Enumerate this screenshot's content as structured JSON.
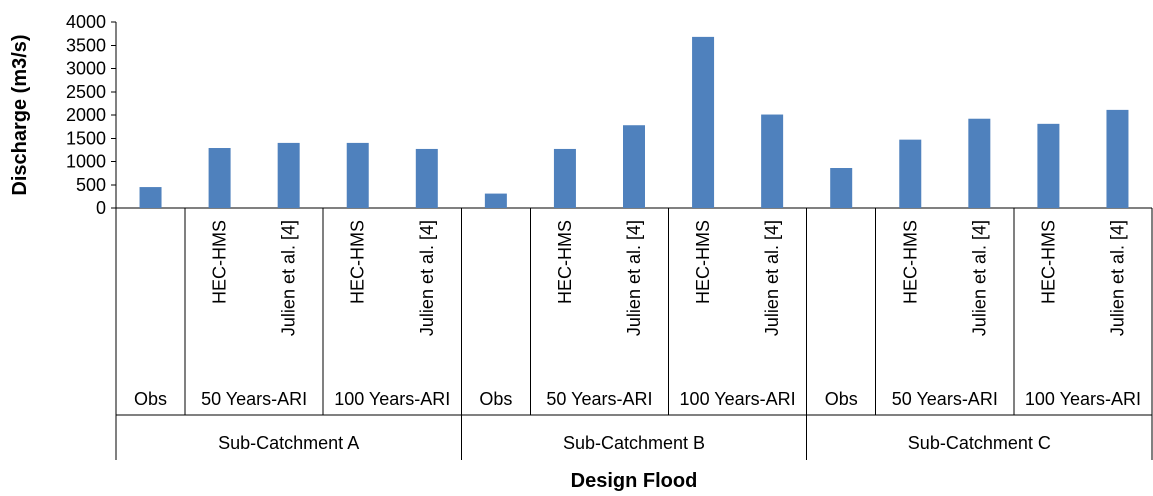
{
  "chart_data": {
    "type": "bar",
    "xlabel": "Design Flood",
    "ylabel": "Discharge (m3/s)",
    "ylim": [
      0,
      4000
    ],
    "yticks": [
      "0",
      "500",
      "1000",
      "1500",
      "2000",
      "2500",
      "3000",
      "3500",
      "4000"
    ],
    "grid": false,
    "legend": "none",
    "bar_color": "#4f81bd",
    "groups": [
      {
        "label": "Sub-Catchment A",
        "subgroups": [
          {
            "label": "Obs",
            "bars": [
              {
                "label": "",
                "value": 450
              }
            ]
          },
          {
            "label": "50 Years-ARI",
            "bars": [
              {
                "label": "HEC-HMS",
                "value": 1290
              },
              {
                "label": "Julien et al. [4]",
                "value": 1400
              }
            ]
          },
          {
            "label": "100 Years-ARI",
            "bars": [
              {
                "label": "HEC-HMS",
                "value": 1400
              },
              {
                "label": "Julien et al. [4]",
                "value": 1270
              }
            ]
          }
        ]
      },
      {
        "label": "Sub-Catchment B",
        "subgroups": [
          {
            "label": "Obs",
            "bars": [
              {
                "label": "",
                "value": 310
              }
            ]
          },
          {
            "label": "50 Years-ARI",
            "bars": [
              {
                "label": "HEC-HMS",
                "value": 1270
              },
              {
                "label": "Julien et al. [4]",
                "value": 1780
              }
            ]
          },
          {
            "label": "100 Years-ARI",
            "bars": [
              {
                "label": "HEC-HMS",
                "value": 3680
              },
              {
                "label": "Julien et al. [4]",
                "value": 2010
              }
            ]
          }
        ]
      },
      {
        "label": "Sub-Catchment C",
        "subgroups": [
          {
            "label": "Obs",
            "bars": [
              {
                "label": "",
                "value": 860
              }
            ]
          },
          {
            "label": "50 Years-ARI",
            "bars": [
              {
                "label": "HEC-HMS",
                "value": 1470
              },
              {
                "label": "Julien et al. [4]",
                "value": 1920
              }
            ]
          },
          {
            "label": "100 Years-ARI",
            "bars": [
              {
                "label": "HEC-HMS",
                "value": 1810
              },
              {
                "label": "Julien et al. [4]",
                "value": 2110
              }
            ]
          }
        ]
      }
    ]
  }
}
